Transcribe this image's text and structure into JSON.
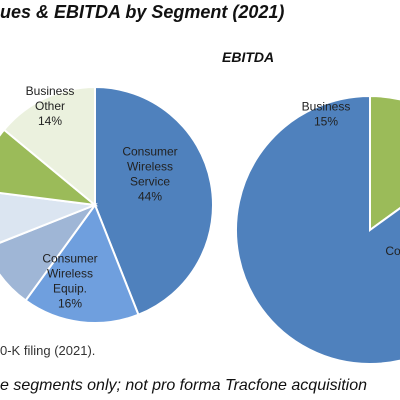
{
  "title": "ues & EBITDA by Segment (2021)",
  "source": "0-K filing (2021).",
  "footnote": "e segments only; not pro forma Tracfone acquisition",
  "chart_data": [
    {
      "type": "pie",
      "title": "",
      "slices": [
        {
          "label": "Consumer\nWireless\nService\n44%",
          "value": 44,
          "color": "#4f81bd"
        },
        {
          "label": "Consumer\nWireless\nEquip.\n16%",
          "value": 16,
          "color": "#6f9fde"
        },
        {
          "label": "",
          "value": 9,
          "color": "#9fb6d6"
        },
        {
          "label": "",
          "value": 8,
          "color": "#dbe5f1"
        },
        {
          "label": "",
          "value": 9,
          "color": "#9bbb59"
        },
        {
          "label": "Business\nOther\n14%",
          "value": 14,
          "color": "#ebf1de"
        }
      ]
    },
    {
      "type": "pie",
      "title": "EBITDA",
      "slices": [
        {
          "label": "Business\n15%",
          "value": 15,
          "color": "#9bbb59"
        },
        {
          "label": "Co",
          "value": 85,
          "color": "#4f81bd"
        }
      ]
    }
  ]
}
